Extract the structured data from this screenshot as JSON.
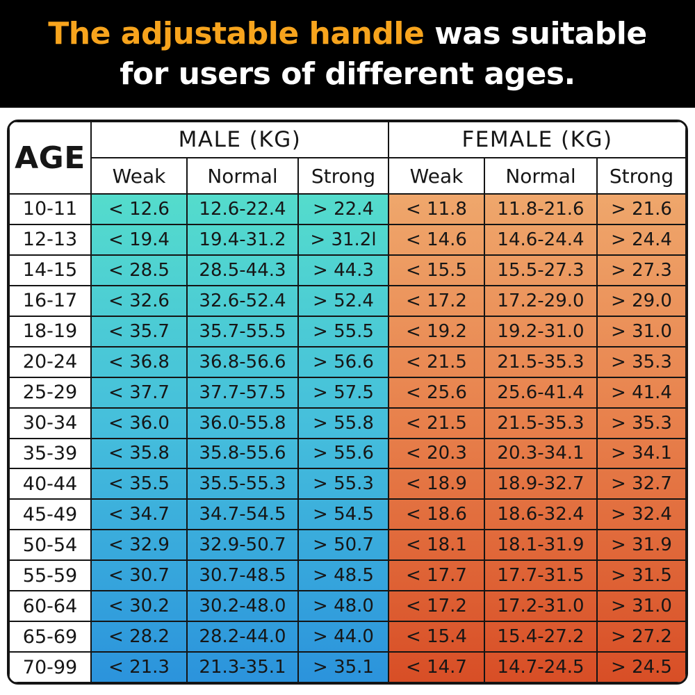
{
  "banner": {
    "title_highlight": "The adjustable handle",
    "title_rest": " was suitable",
    "title_line2": "for users of different ages.",
    "bg_color": "#000000",
    "highlight_color": "#F7A41D",
    "text_color": "#FFFFFF"
  },
  "table": {
    "corner_label": "AGE",
    "male_group_label": "MALE (KG)",
    "female_group_label": "FEMALE (KG)",
    "subheaders": [
      "Weak",
      "Normal",
      "Strong"
    ]
  },
  "colors": {
    "male_gradient_top": "#54DCCC",
    "male_gradient_mid": "#45BEDC",
    "male_gradient_bottom": "#2B93DC",
    "female_gradient_top": "#EFA76C",
    "female_gradient_mid": "#E8824D",
    "female_gradient_bottom": "#D84E26",
    "border_color": "#141414"
  },
  "chart_data": {
    "type": "table",
    "title": "The adjustable handle was suitable for users of different ages.",
    "units": "KG",
    "columns": [
      "AGE",
      "Male Weak",
      "Male Normal",
      "Male Strong",
      "Female Weak",
      "Female Normal",
      "Female Strong"
    ],
    "rows": [
      {
        "age": "10-11",
        "male": [
          "< 12.6",
          "12.6-22.4",
          "> 22.4"
        ],
        "female": [
          "< 11.8",
          "11.8-21.6",
          "> 21.6"
        ]
      },
      {
        "age": "12-13",
        "male": [
          "< 19.4",
          "19.4-31.2",
          "> 31.2l"
        ],
        "female": [
          "< 14.6",
          "14.6-24.4",
          "> 24.4"
        ]
      },
      {
        "age": "14-15",
        "male": [
          "< 28.5",
          "28.5-44.3",
          "> 44.3"
        ],
        "female": [
          "< 15.5",
          "15.5-27.3",
          "> 27.3"
        ]
      },
      {
        "age": "16-17",
        "male": [
          "< 32.6",
          "32.6-52.4",
          "> 52.4"
        ],
        "female": [
          "< 17.2",
          "17.2-29.0",
          "> 29.0"
        ]
      },
      {
        "age": "18-19",
        "male": [
          "< 35.7",
          "35.7-55.5",
          "> 55.5"
        ],
        "female": [
          "< 19.2",
          "19.2-31.0",
          "> 31.0"
        ]
      },
      {
        "age": "20-24",
        "male": [
          "< 36.8",
          "36.8-56.6",
          "> 56.6"
        ],
        "female": [
          "< 21.5",
          "21.5-35.3",
          "> 35.3"
        ]
      },
      {
        "age": "25-29",
        "male": [
          "< 37.7",
          "37.7-57.5",
          "> 57.5"
        ],
        "female": [
          "< 25.6",
          "25.6-41.4",
          "> 41.4"
        ]
      },
      {
        "age": "30-34",
        "male": [
          "< 36.0",
          "36.0-55.8",
          "> 55.8"
        ],
        "female": [
          "< 21.5",
          "21.5-35.3",
          "> 35.3"
        ]
      },
      {
        "age": "35-39",
        "male": [
          "< 35.8",
          "35.8-55.6",
          "> 55.6"
        ],
        "female": [
          "< 20.3",
          "20.3-34.1",
          "> 34.1"
        ]
      },
      {
        "age": "40-44",
        "male": [
          "< 35.5",
          "35.5-55.3",
          "> 55.3"
        ],
        "female": [
          "< 18.9",
          "18.9-32.7",
          "> 32.7"
        ]
      },
      {
        "age": "45-49",
        "male": [
          "< 34.7",
          "34.7-54.5",
          "> 54.5"
        ],
        "female": [
          "< 18.6",
          "18.6-32.4",
          "> 32.4"
        ]
      },
      {
        "age": "50-54",
        "male": [
          "< 32.9",
          "32.9-50.7",
          "> 50.7"
        ],
        "female": [
          "< 18.1",
          "18.1-31.9",
          "> 31.9"
        ]
      },
      {
        "age": "55-59",
        "male": [
          "< 30.7",
          "30.7-48.5",
          "> 48.5"
        ],
        "female": [
          "< 17.7",
          "17.7-31.5",
          "> 31.5"
        ]
      },
      {
        "age": "60-64",
        "male": [
          "< 30.2",
          "30.2-48.0",
          "> 48.0"
        ],
        "female": [
          "< 17.2",
          "17.2-31.0",
          "> 31.0"
        ]
      },
      {
        "age": "65-69",
        "male": [
          "< 28.2",
          "28.2-44.0",
          "> 44.0"
        ],
        "female": [
          "< 15.4",
          "15.4-27.2",
          "> 27.2"
        ]
      },
      {
        "age": "70-99",
        "male": [
          "< 21.3",
          "21.3-35.1",
          "> 35.1"
        ],
        "female": [
          "< 14.7",
          "14.7-24.5",
          "> 24.5"
        ]
      }
    ]
  }
}
